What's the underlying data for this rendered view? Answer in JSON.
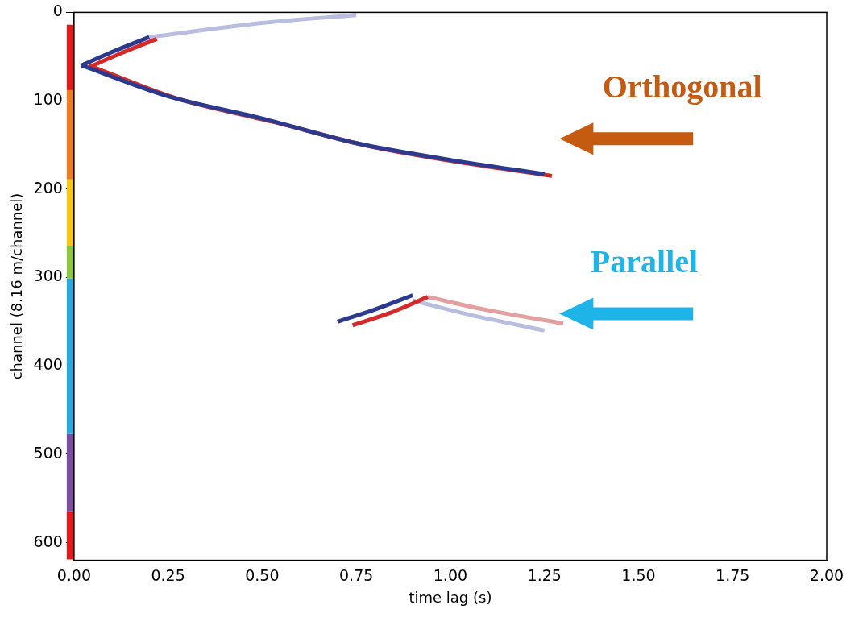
{
  "chart_data": {
    "type": "scatter",
    "x_label": "time lag (s)",
    "y_label": "channel (8.16 m/channel)",
    "xlim": [
      0,
      2
    ],
    "xticks": [
      {
        "value": 0,
        "label": "0.00"
      },
      {
        "value": 0.25,
        "label": "0.25"
      },
      {
        "value": 0.5,
        "label": "0.50"
      },
      {
        "value": 0.75,
        "label": "0.75"
      },
      {
        "value": 1,
        "label": "1.00"
      },
      {
        "value": 1.25,
        "label": "1.25"
      },
      {
        "value": 1.5,
        "label": "1.50"
      },
      {
        "value": 1.75,
        "label": "1.75"
      },
      {
        "value": 2,
        "label": "2.00"
      }
    ],
    "ylim": [
      620,
      0
    ],
    "yticks": [
      0,
      100,
      200,
      300,
      400,
      500,
      600
    ],
    "grid": false,
    "series": [
      {
        "color": "#2b3a8f",
        "line_style": "solid",
        "x": [
          0.02,
          0.25,
          0.5,
          0.75,
          1.0,
          1.25
        ],
        "values": [
          60,
          95,
          120,
          148,
          167,
          183
        ]
      },
      {
        "color": "#d42a2a",
        "line_style": "solid",
        "x": [
          0.04,
          0.27,
          0.53,
          0.78,
          1.03,
          1.27
        ],
        "values": [
          60,
          97,
          124,
          151,
          170,
          185
        ]
      },
      {
        "color": "#2b3a8f",
        "line_style": "solid",
        "x": [
          0.02,
          0.1,
          0.2
        ],
        "values": [
          60,
          45,
          28
        ]
      },
      {
        "color": "#d42a2a",
        "line_style": "solid",
        "x": [
          0.04,
          0.12,
          0.22
        ],
        "values": [
          62,
          47,
          30
        ]
      },
      {
        "color": "#b9bde0",
        "line_style": "solid",
        "x": [
          0.2,
          0.5,
          0.75
        ],
        "values": [
          28,
          12,
          3
        ]
      },
      {
        "color": "#2b3a8f",
        "line_style": "solid",
        "x": [
          0.7,
          0.8,
          0.9
        ],
        "values": [
          350,
          336,
          320
        ]
      },
      {
        "color": "#d42a2a",
        "line_style": "solid",
        "x": [
          0.74,
          0.84,
          0.94
        ],
        "values": [
          354,
          340,
          322
        ]
      },
      {
        "color": "#e3a0a0",
        "line_style": "solid",
        "x": [
          0.94,
          1.1,
          1.3
        ],
        "values": [
          322,
          337,
          352
        ]
      },
      {
        "color": "#b9bde0",
        "line_style": "solid",
        "x": [
          0.9,
          1.05,
          1.25
        ],
        "values": [
          326,
          342,
          360
        ]
      }
    ],
    "channel_bands": [
      {
        "from": 14,
        "to": 88,
        "color": "#e31a1c"
      },
      {
        "from": 88,
        "to": 189,
        "color": "#f07b22"
      },
      {
        "from": 189,
        "to": 264,
        "color": "#f5c518"
      },
      {
        "from": 264,
        "to": 301,
        "color": "#8dc63f"
      },
      {
        "from": 301,
        "to": 477,
        "color": "#29a9e1"
      },
      {
        "from": 477,
        "to": 565,
        "color": "#7b4fa0"
      },
      {
        "from": 565,
        "to": 619,
        "color": "#e31a1c"
      }
    ],
    "annotations": [
      {
        "text": "Orthogonal",
        "x": 1.616,
        "y": 87,
        "color": "#c55a11",
        "arrow": {
          "from": [
            1.645,
            143
          ],
          "to": [
            1.29,
            143
          ]
        }
      },
      {
        "text": "Parallel",
        "x": 1.515,
        "y": 285,
        "color": "#1fb4e8",
        "arrow": {
          "from": [
            1.645,
            341
          ],
          "to": [
            1.29,
            341
          ]
        }
      }
    ]
  }
}
